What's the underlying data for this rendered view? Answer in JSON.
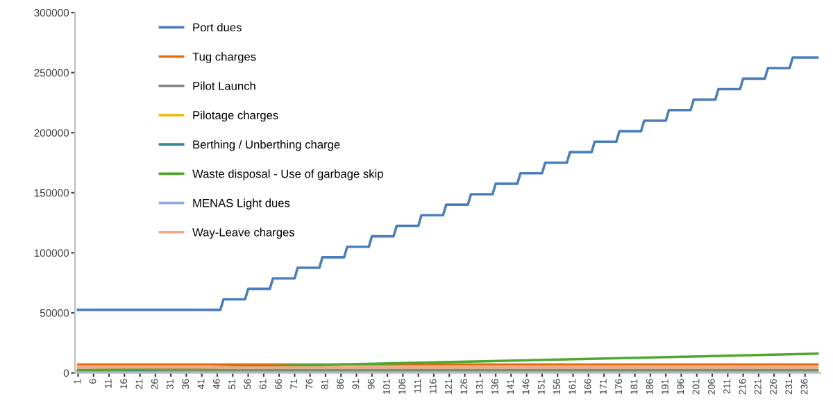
{
  "chart_data": {
    "type": "line",
    "xlim": [
      0,
      241
    ],
    "xticks": [
      1,
      6,
      11,
      16,
      21,
      26,
      31,
      36,
      41,
      46,
      51,
      56,
      61,
      66,
      71,
      76,
      81,
      86,
      91,
      96,
      101,
      106,
      111,
      116,
      121,
      126,
      131,
      136,
      141,
      146,
      151,
      156,
      161,
      166,
      171,
      176,
      181,
      186,
      191,
      196,
      201,
      206,
      211,
      216,
      221,
      226,
      231,
      236
    ],
    "ylim": [
      0,
      300000
    ],
    "yticks": [
      0,
      50000,
      100000,
      150000,
      200000,
      250000,
      300000
    ],
    "grid": false,
    "legend": "top left",
    "marker": "none",
    "line_style": "solid",
    "series": [
      {
        "name": "Port dues",
        "color": "#4a7ebb",
        "x": [
          1,
          47,
          48,
          55,
          56,
          63,
          64,
          71,
          72,
          79,
          80,
          87,
          88,
          95,
          96,
          103,
          104,
          111,
          112,
          119,
          120,
          127,
          128,
          135,
          136,
          143,
          144,
          151,
          152,
          159,
          160,
          167,
          168,
          175,
          176,
          183,
          184,
          191,
          192,
          199,
          200,
          207,
          208,
          215,
          216,
          223,
          224,
          231,
          232,
          240
        ],
        "values": [
          52500,
          52500,
          61250,
          61250,
          70000,
          70000,
          78750,
          78750,
          87500,
          87500,
          96250,
          96250,
          105000,
          105000,
          113750,
          113750,
          122500,
          122500,
          131250,
          131250,
          140000,
          140000,
          148750,
          148750,
          157500,
          157500,
          166250,
          166250,
          175000,
          175000,
          183750,
          183750,
          192500,
          192500,
          201250,
          201250,
          210000,
          210000,
          218750,
          218750,
          227500,
          227500,
          236250,
          236250,
          245000,
          245000,
          253750,
          253750,
          262500,
          262500
        ]
      },
      {
        "name": "Tug charges",
        "color": "#e46c0a",
        "x": [
          1,
          240
        ],
        "values": [
          7000,
          7000
        ]
      },
      {
        "name": "Pilot Launch",
        "color": "#7f7f7f",
        "x": [
          1,
          240
        ],
        "values": [
          2500,
          2500
        ]
      },
      {
        "name": "Pilotage charges",
        "color": "#f9b800",
        "x": [
          1,
          240
        ],
        "values": [
          1500,
          1500
        ]
      },
      {
        "name": "Berthing / Unberthing charge",
        "color": "#31859c",
        "x": [
          1,
          240
        ],
        "values": [
          1000,
          1000
        ]
      },
      {
        "name": "Waste disposal - Use of garbage skip",
        "color": "#4ea72e",
        "x": [
          1,
          240
        ],
        "values": [
          2000,
          16000
        ]
      },
      {
        "name": "MENAS Light dues",
        "color": "#8ea9db",
        "x": [
          1,
          240
        ],
        "values": [
          500,
          500
        ]
      },
      {
        "name": "Way-Leave charges",
        "color": "#f4a582",
        "x": [
          1,
          240
        ],
        "values": [
          4500,
          4500
        ]
      }
    ]
  }
}
